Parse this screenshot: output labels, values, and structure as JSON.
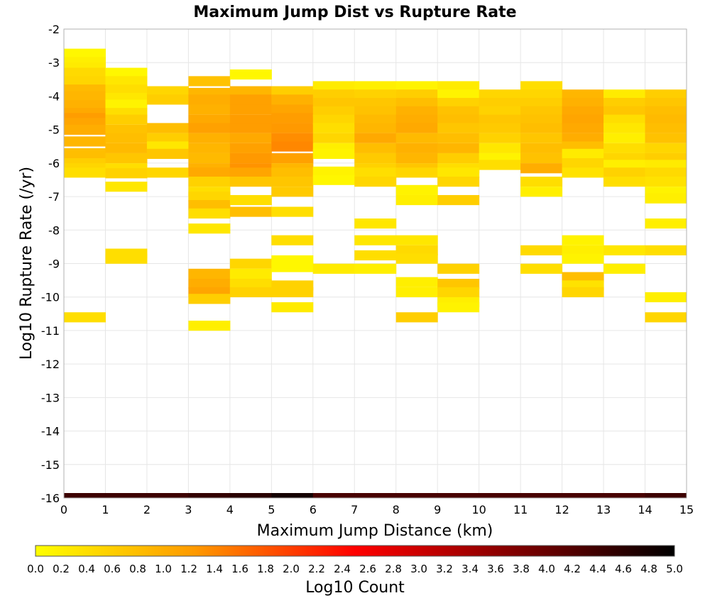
{
  "chart_data": {
    "type": "heatmap",
    "title": "Maximum Jump Dist vs Rupture Rate",
    "xlabel": "Maximum Jump Distance (km)",
    "ylabel": "Log10 Rupture Rate (/yr)",
    "colorbar_label": "Log10 Count",
    "xlim": [
      0,
      15
    ],
    "ylim": [
      -16,
      -2
    ],
    "x_ticks": [
      "0",
      "1",
      "2",
      "3",
      "4",
      "5",
      "6",
      "7",
      "8",
      "9",
      "10",
      "11",
      "12",
      "13",
      "14",
      "15"
    ],
    "y_ticks": [
      "-2",
      "-3",
      "-4",
      "-5",
      "-6",
      "-7",
      "-8",
      "-9",
      "-10",
      "-11",
      "-12",
      "-13",
      "-14",
      "-15",
      "-16"
    ],
    "color_scale_ticks": [
      "0.0",
      "0.2",
      "0.4",
      "0.6",
      "0.8",
      "1.0",
      "1.2",
      "1.4",
      "1.6",
      "1.8",
      "2.0",
      "2.2",
      "2.4",
      "2.6",
      "2.8",
      "3.0",
      "3.2",
      "3.4",
      "3.6",
      "3.8",
      "4.0",
      "4.2",
      "4.4",
      "4.6",
      "4.8",
      "5.0"
    ],
    "color_scale_range": [
      0,
      5
    ],
    "colormap": [
      "#ffff00",
      "#ff9900",
      "#ff0000",
      "#800000",
      "#000000"
    ],
    "x_bin_width": 1,
    "y_bin_height": 0.29,
    "columns": [
      {
        "x": 0,
        "cells": [
          [
            -2.73,
            0.1
          ],
          [
            -2.98,
            0.2
          ],
          [
            -3.15,
            0.25
          ],
          [
            -3.3,
            0.45
          ],
          [
            -3.55,
            0.5
          ],
          [
            -3.8,
            0.85
          ],
          [
            -4.0,
            0.9
          ],
          [
            -4.27,
            0.95
          ],
          [
            -4.5,
            1.05
          ],
          [
            -4.65,
            1.2
          ],
          [
            -4.8,
            1.1
          ],
          [
            -5.0,
            1.0
          ],
          [
            -5.35,
            0.9
          ],
          [
            -5.7,
            0.8
          ],
          [
            -6.0,
            0.6
          ],
          [
            -6.15,
            0.5
          ],
          [
            -6.28,
            0.4
          ],
          [
            -10.6,
            0.4
          ]
        ]
      },
      {
        "x": 1,
        "cells": [
          [
            -3.3,
            0.1
          ],
          [
            -3.55,
            0.3
          ],
          [
            -3.8,
            0.4
          ],
          [
            -4.05,
            0.3
          ],
          [
            -4.25,
            0.15
          ],
          [
            -4.5,
            0.4
          ],
          [
            -4.7,
            0.6
          ],
          [
            -5.0,
            0.75
          ],
          [
            -5.25,
            0.8
          ],
          [
            -5.55,
            0.85
          ],
          [
            -5.85,
            0.7
          ],
          [
            -6.15,
            0.4
          ],
          [
            -6.3,
            0.55
          ],
          [
            -6.7,
            0.3
          ],
          [
            -8.7,
            0.4
          ],
          [
            -8.85,
            0.4
          ]
        ]
      },
      {
        "x": 2,
        "cells": [
          [
            -3.85,
            0.5
          ],
          [
            -4.1,
            0.6
          ],
          [
            -4.95,
            0.8
          ],
          [
            -5.25,
            0.6
          ],
          [
            -5.5,
            0.3
          ],
          [
            -5.72,
            0.7
          ],
          [
            -6.28,
            0.5
          ]
        ]
      },
      {
        "x": 3,
        "cells": [
          [
            -3.55,
            0.75
          ],
          [
            -3.9,
            0.9
          ],
          [
            -4.1,
            1.0
          ],
          [
            -4.4,
            0.95
          ],
          [
            -4.7,
            1.05
          ],
          [
            -4.95,
            1.15
          ],
          [
            -5.25,
            0.95
          ],
          [
            -5.55,
            0.9
          ],
          [
            -5.85,
            0.85
          ],
          [
            -6.15,
            0.95
          ],
          [
            -6.28,
            1.05
          ],
          [
            -6.55,
            0.55
          ],
          [
            -6.85,
            0.4
          ],
          [
            -7.0,
            0.5
          ],
          [
            -7.25,
            0.8
          ],
          [
            -7.5,
            0.4
          ],
          [
            -7.95,
            0.3
          ],
          [
            -9.3,
            0.9
          ],
          [
            -9.6,
            1.0
          ],
          [
            -9.85,
            1.1
          ],
          [
            -10.05,
            0.6
          ],
          [
            -10.85,
            0.2
          ]
        ]
      },
      {
        "x": 4,
        "cells": [
          [
            -3.35,
            0.1
          ],
          [
            -3.85,
            0.9
          ],
          [
            -4.1,
            1.15
          ],
          [
            -4.4,
            1.15
          ],
          [
            -4.7,
            1.2
          ],
          [
            -4.95,
            1.2
          ],
          [
            -5.25,
            1.05
          ],
          [
            -5.55,
            1.15
          ],
          [
            -5.85,
            1.25
          ],
          [
            -6.15,
            1.3
          ],
          [
            -6.28,
            1.1
          ],
          [
            -6.55,
            0.7
          ],
          [
            -7.1,
            0.4
          ],
          [
            -7.45,
            0.8
          ],
          [
            -9.0,
            0.5
          ],
          [
            -9.3,
            0.25
          ],
          [
            -9.6,
            0.4
          ],
          [
            -9.85,
            0.55
          ]
        ]
      },
      {
        "x": 5,
        "cells": [
          [
            -3.85,
            0.6
          ],
          [
            -4.1,
            0.95
          ],
          [
            -4.4,
            1.1
          ],
          [
            -4.65,
            1.2
          ],
          [
            -4.95,
            1.25
          ],
          [
            -5.25,
            1.35
          ],
          [
            -5.5,
            1.4
          ],
          [
            -5.85,
            1.15
          ],
          [
            -6.15,
            0.9
          ],
          [
            -6.28,
            0.8
          ],
          [
            -6.55,
            0.7
          ],
          [
            -6.85,
            0.65
          ],
          [
            -7.45,
            0.4
          ],
          [
            -8.3,
            0.4
          ],
          [
            -8.9,
            0.1
          ],
          [
            -9.1,
            0.1
          ],
          [
            -9.65,
            0.55
          ],
          [
            -9.85,
            0.55
          ],
          [
            -10.3,
            0.25
          ]
        ]
      },
      {
        "x": 6,
        "cells": [
          [
            -3.7,
            0.25
          ],
          [
            -3.95,
            0.6
          ],
          [
            -4.2,
            0.7
          ],
          [
            -4.45,
            0.6
          ],
          [
            -4.7,
            0.5
          ],
          [
            -4.95,
            0.4
          ],
          [
            -5.25,
            0.5
          ],
          [
            -5.55,
            0.2
          ],
          [
            -5.72,
            0.15
          ],
          [
            -6.25,
            0.15
          ],
          [
            -6.5,
            0.1
          ],
          [
            -9.15,
            0.25
          ]
        ]
      },
      {
        "x": 7,
        "cells": [
          [
            -3.7,
            0.2
          ],
          [
            -3.95,
            0.55
          ],
          [
            -4.2,
            0.7
          ],
          [
            -4.45,
            0.75
          ],
          [
            -4.7,
            0.85
          ],
          [
            -4.95,
            0.9
          ],
          [
            -5.25,
            1.05
          ],
          [
            -5.55,
            0.8
          ],
          [
            -5.85,
            0.65
          ],
          [
            -6.15,
            0.55
          ],
          [
            -6.28,
            0.4
          ],
          [
            -6.55,
            0.5
          ],
          [
            -7.8,
            0.3
          ],
          [
            -8.3,
            0.3
          ],
          [
            -8.75,
            0.4
          ],
          [
            -9.15,
            0.2
          ]
        ]
      },
      {
        "x": 8,
        "cells": [
          [
            -3.7,
            0.15
          ],
          [
            -3.95,
            0.6
          ],
          [
            -4.2,
            0.8
          ],
          [
            -4.45,
            0.95
          ],
          [
            -4.7,
            1.0
          ],
          [
            -4.95,
            1.05
          ],
          [
            -5.25,
            0.85
          ],
          [
            -5.55,
            0.95
          ],
          [
            -5.85,
            0.9
          ],
          [
            -6.15,
            0.7
          ],
          [
            -6.28,
            0.5
          ],
          [
            -6.8,
            0.15
          ],
          [
            -7.1,
            0.2
          ],
          [
            -8.3,
            0.3
          ],
          [
            -8.6,
            0.45
          ],
          [
            -8.85,
            0.4
          ],
          [
            -9.55,
            0.2
          ],
          [
            -9.85,
            0.2
          ],
          [
            -10.6,
            0.6
          ]
        ]
      },
      {
        "x": 9,
        "cells": [
          [
            -3.7,
            0.25
          ],
          [
            -3.95,
            0.15
          ],
          [
            -4.2,
            0.55
          ],
          [
            -4.45,
            0.75
          ],
          [
            -4.7,
            0.8
          ],
          [
            -4.95,
            0.7
          ],
          [
            -5.25,
            0.8
          ],
          [
            -5.55,
            0.9
          ],
          [
            -5.85,
            0.6
          ],
          [
            -6.15,
            0.4
          ],
          [
            -6.28,
            0.3
          ],
          [
            -6.55,
            0.5
          ],
          [
            -7.1,
            0.6
          ],
          [
            -9.15,
            0.55
          ],
          [
            -9.6,
            0.7
          ],
          [
            -9.85,
            0.5
          ],
          [
            -10.15,
            0.2
          ],
          [
            -10.3,
            0.15
          ]
        ]
      },
      {
        "x": 10,
        "cells": [
          [
            -3.95,
            0.5
          ],
          [
            -4.2,
            0.6
          ],
          [
            -4.45,
            0.55
          ],
          [
            -4.7,
            0.7
          ],
          [
            -4.95,
            0.65
          ],
          [
            -5.25,
            0.55
          ],
          [
            -5.55,
            0.3
          ],
          [
            -5.85,
            0.15
          ],
          [
            -6.05,
            0.4
          ]
        ]
      },
      {
        "x": 11,
        "cells": [
          [
            -3.7,
            0.4
          ],
          [
            -3.95,
            0.5
          ],
          [
            -4.2,
            0.6
          ],
          [
            -4.45,
            0.7
          ],
          [
            -4.7,
            0.75
          ],
          [
            -4.95,
            0.8
          ],
          [
            -5.25,
            0.7
          ],
          [
            -5.55,
            0.8
          ],
          [
            -5.85,
            0.75
          ],
          [
            -6.15,
            1.0
          ],
          [
            -6.55,
            0.4
          ],
          [
            -6.85,
            0.2
          ],
          [
            -8.6,
            0.45
          ],
          [
            -9.15,
            0.4
          ]
        ]
      },
      {
        "x": 12,
        "cells": [
          [
            -3.95,
            0.9
          ],
          [
            -4.2,
            0.95
          ],
          [
            -4.45,
            1.05
          ],
          [
            -4.7,
            1.1
          ],
          [
            -4.95,
            1.05
          ],
          [
            -5.25,
            1.0
          ],
          [
            -5.5,
            0.8
          ],
          [
            -5.72,
            0.25
          ],
          [
            -6.0,
            0.5
          ],
          [
            -6.28,
            0.35
          ],
          [
            -8.3,
            0.15
          ],
          [
            -8.6,
            0.2
          ],
          [
            -8.85,
            0.15
          ],
          [
            -9.4,
            0.8
          ],
          [
            -9.65,
            0.35
          ],
          [
            -9.85,
            0.5
          ]
        ]
      },
      {
        "x": 13,
        "cells": [
          [
            -3.95,
            0.25
          ],
          [
            -4.2,
            0.6
          ],
          [
            -4.45,
            0.7
          ],
          [
            -4.7,
            0.4
          ],
          [
            -4.95,
            0.3
          ],
          [
            -5.25,
            0.2
          ],
          [
            -5.55,
            0.4
          ],
          [
            -5.85,
            0.5
          ],
          [
            -6.05,
            0.2
          ],
          [
            -6.28,
            0.55
          ],
          [
            -6.55,
            0.4
          ],
          [
            -8.6,
            0.3
          ],
          [
            -9.15,
            0.2
          ]
        ]
      },
      {
        "x": 14,
        "cells": [
          [
            -3.95,
            0.6
          ],
          [
            -4.2,
            0.7
          ],
          [
            -4.45,
            0.8
          ],
          [
            -4.7,
            0.85
          ],
          [
            -4.95,
            0.8
          ],
          [
            -5.25,
            0.75
          ],
          [
            -5.55,
            0.5
          ],
          [
            -5.85,
            0.6
          ],
          [
            -6.05,
            0.25
          ],
          [
            -6.28,
            0.45
          ],
          [
            -6.55,
            0.35
          ],
          [
            -6.85,
            0.15
          ],
          [
            -7.05,
            0.2
          ],
          [
            -7.8,
            0.2
          ],
          [
            -8.6,
            0.4
          ],
          [
            -10.0,
            0.2
          ],
          [
            -10.6,
            0.5
          ]
        ]
      }
    ],
    "floor_row": {
      "y": -16,
      "values": [
        4.4,
        4.4,
        4.4,
        4.5,
        4.6,
        4.8,
        4.3,
        4.3,
        4.3,
        4.3,
        4.3,
        4.3,
        4.3,
        4.3,
        4.4
      ]
    }
  }
}
